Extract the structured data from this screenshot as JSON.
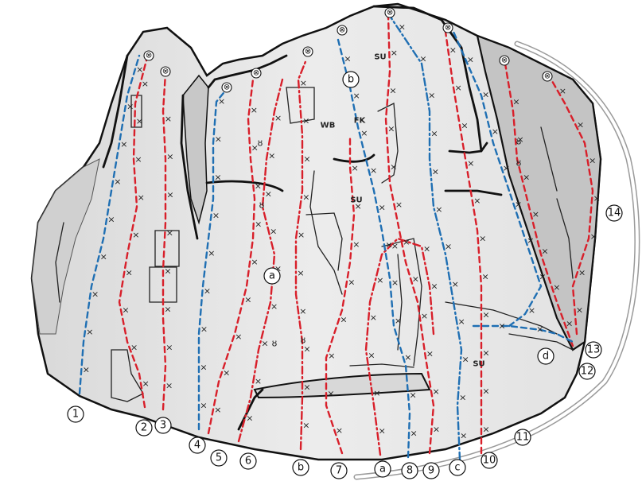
{
  "colors": {
    "rock": "#e6e6e6",
    "rock_shadow": "#c4c4c4",
    "outline": "#111111",
    "route_red": "#d81f2a",
    "route_blue": "#1f6fb3",
    "path": "#9a9a9a"
  },
  "icons": {
    "anchor": "lowering-anchor-icon",
    "bolt": "bolt-cross-icon",
    "sling": "sling-icon"
  },
  "glyphs": {
    "bolt": "×",
    "anchor": "⊗",
    "sling": "ȣ"
  },
  "route_numbers": [
    "1",
    "2",
    "3",
    "4",
    "5",
    "6",
    "7",
    "8",
    "9",
    "10",
    "11",
    "12",
    "13",
    "14"
  ],
  "sector_letters": [
    "a",
    "b",
    "c",
    "d"
  ],
  "annotations": [
    "SU",
    "FK",
    "WB"
  ]
}
